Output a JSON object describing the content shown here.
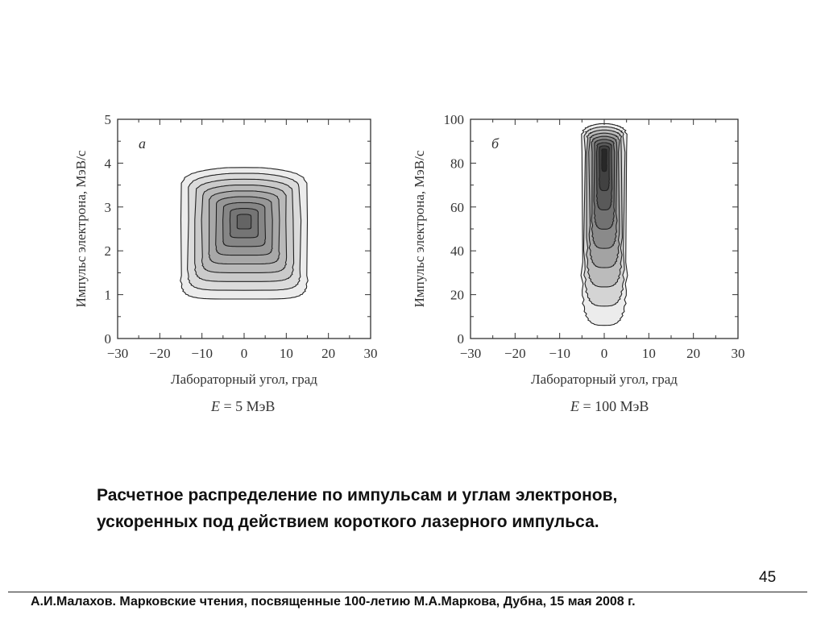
{
  "caption": {
    "line1": "Расчетное распределение по импульсам и углам электронов,",
    "line2": "ускоренных под действием короткого лазерного импульса."
  },
  "page_number": "45",
  "footer": "А.И.Малахов. Марковские чтения, посвященные 100-летию М.А.Маркова, Дубна, 15 мая 2008 г.",
  "colors": {
    "axes": "#333333",
    "outline": "#222222"
  },
  "chart_data": [
    {
      "type": "contour",
      "panel_letter": "а",
      "energy_label": {
        "symbol": "E",
        "rest": " = 5 МэВ"
      },
      "xlabel": "Лабораторный угол, град",
      "ylabel": "Импульс электрона, МэВ/c",
      "xlim": [
        -30,
        30
      ],
      "ylim": [
        0,
        5
      ],
      "xticks": [
        "−30",
        "−20",
        "−10",
        "0",
        "10",
        "20",
        "30"
      ],
      "yticks": [
        "0",
        "1",
        "2",
        "3",
        "4",
        "5"
      ],
      "peak": {
        "angle_deg": 0,
        "momentum": 2.7
      },
      "outer_contour": {
        "angle_range": [
          -15,
          15
        ],
        "momentum_range": [
          0.9,
          3.9
        ]
      },
      "levels": 9
    },
    {
      "type": "contour",
      "panel_letter": "б",
      "energy_label": {
        "symbol": "E",
        "rest": " = 100 МэВ"
      },
      "xlabel": "Лабораторный угол, град",
      "ylabel": "Импульс электрона, МэВ/c",
      "xlim": [
        -30,
        30
      ],
      "ylim": [
        0,
        100
      ],
      "xticks": [
        "−30",
        "−20",
        "−10",
        "0",
        "10",
        "20",
        "30"
      ],
      "yticks": [
        "0",
        "20",
        "40",
        "60",
        "80",
        "100"
      ],
      "peak": {
        "angle_deg": 0,
        "momentum": 85
      },
      "outer_contour": {
        "angle_range": [
          -5,
          5
        ],
        "momentum_range": [
          6,
          98
        ]
      },
      "levels": 9
    }
  ]
}
